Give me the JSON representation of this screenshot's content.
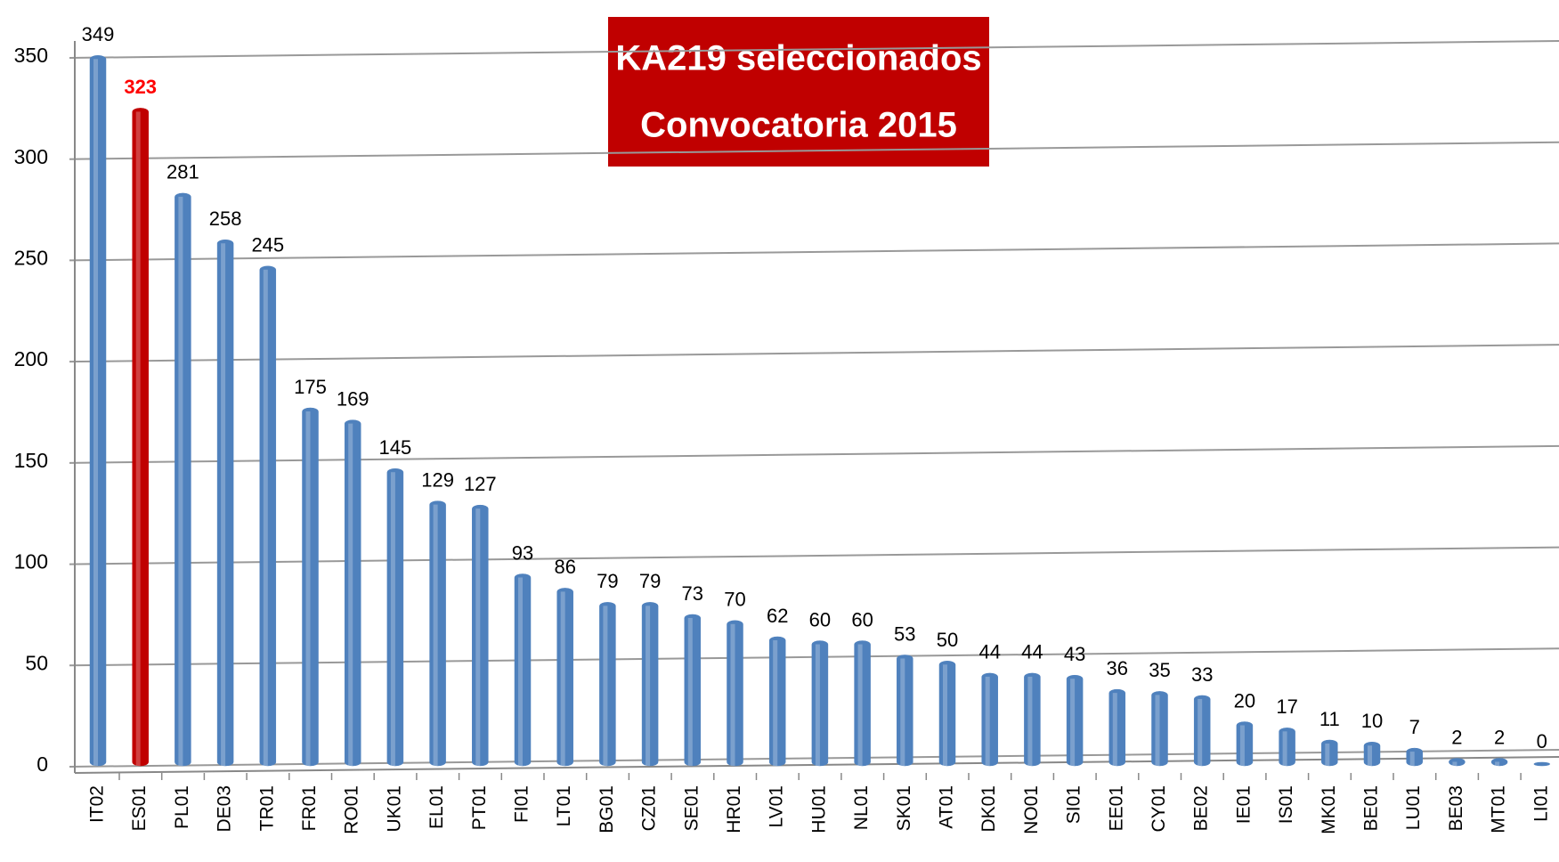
{
  "chart_data": {
    "type": "bar",
    "title": [
      "KA219 seleccionados",
      "Convocatoria 2015"
    ],
    "categories": [
      "IT02",
      "ES01",
      "PL01",
      "DE03",
      "TR01",
      "FR01",
      "RO01",
      "UK01",
      "EL01",
      "PT01",
      "FI01",
      "LT01",
      "BG01",
      "CZ01",
      "SE01",
      "HR01",
      "LV01",
      "HU01",
      "NL01",
      "SK01",
      "AT01",
      "DK01",
      "NO01",
      "SI01",
      "EE01",
      "CY01",
      "BE02",
      "IE01",
      "IS01",
      "MK01",
      "BE01",
      "LU01",
      "BE03",
      "MT01",
      "LI01"
    ],
    "values": [
      349,
      323,
      281,
      258,
      245,
      175,
      169,
      145,
      129,
      127,
      93,
      86,
      79,
      79,
      73,
      70,
      62,
      60,
      60,
      53,
      50,
      44,
      44,
      43,
      36,
      35,
      33,
      20,
      17,
      11,
      10,
      7,
      2,
      2,
      0
    ],
    "colors": [
      "#4f81bd",
      "#c00000",
      "#4f81bd",
      "#4f81bd",
      "#4f81bd",
      "#4f81bd",
      "#4f81bd",
      "#4f81bd",
      "#4f81bd",
      "#4f81bd",
      "#4f81bd",
      "#4f81bd",
      "#4f81bd",
      "#4f81bd",
      "#4f81bd",
      "#4f81bd",
      "#4f81bd",
      "#4f81bd",
      "#4f81bd",
      "#4f81bd",
      "#4f81bd",
      "#4f81bd",
      "#4f81bd",
      "#4f81bd",
      "#4f81bd",
      "#4f81bd",
      "#4f81bd",
      "#4f81bd",
      "#4f81bd",
      "#4f81bd",
      "#4f81bd",
      "#4f81bd",
      "#4f81bd",
      "#4f81bd",
      "#4f81bd"
    ],
    "label_colors": [
      "#000000",
      "#ff0000",
      "#000000",
      "#000000",
      "#000000",
      "#000000",
      "#000000",
      "#000000",
      "#000000",
      "#000000",
      "#000000",
      "#000000",
      "#000000",
      "#000000",
      "#000000",
      "#000000",
      "#000000",
      "#000000",
      "#000000",
      "#000000",
      "#000000",
      "#000000",
      "#000000",
      "#000000",
      "#000000",
      "#000000",
      "#000000",
      "#000000",
      "#000000",
      "#000000",
      "#000000",
      "#000000",
      "#000000",
      "#000000",
      "#000000"
    ],
    "title_color": "#c00000",
    "ylim": [
      0,
      350
    ],
    "yticks": [
      0,
      50,
      100,
      150,
      200,
      250,
      300,
      350
    ],
    "grid": true
  }
}
